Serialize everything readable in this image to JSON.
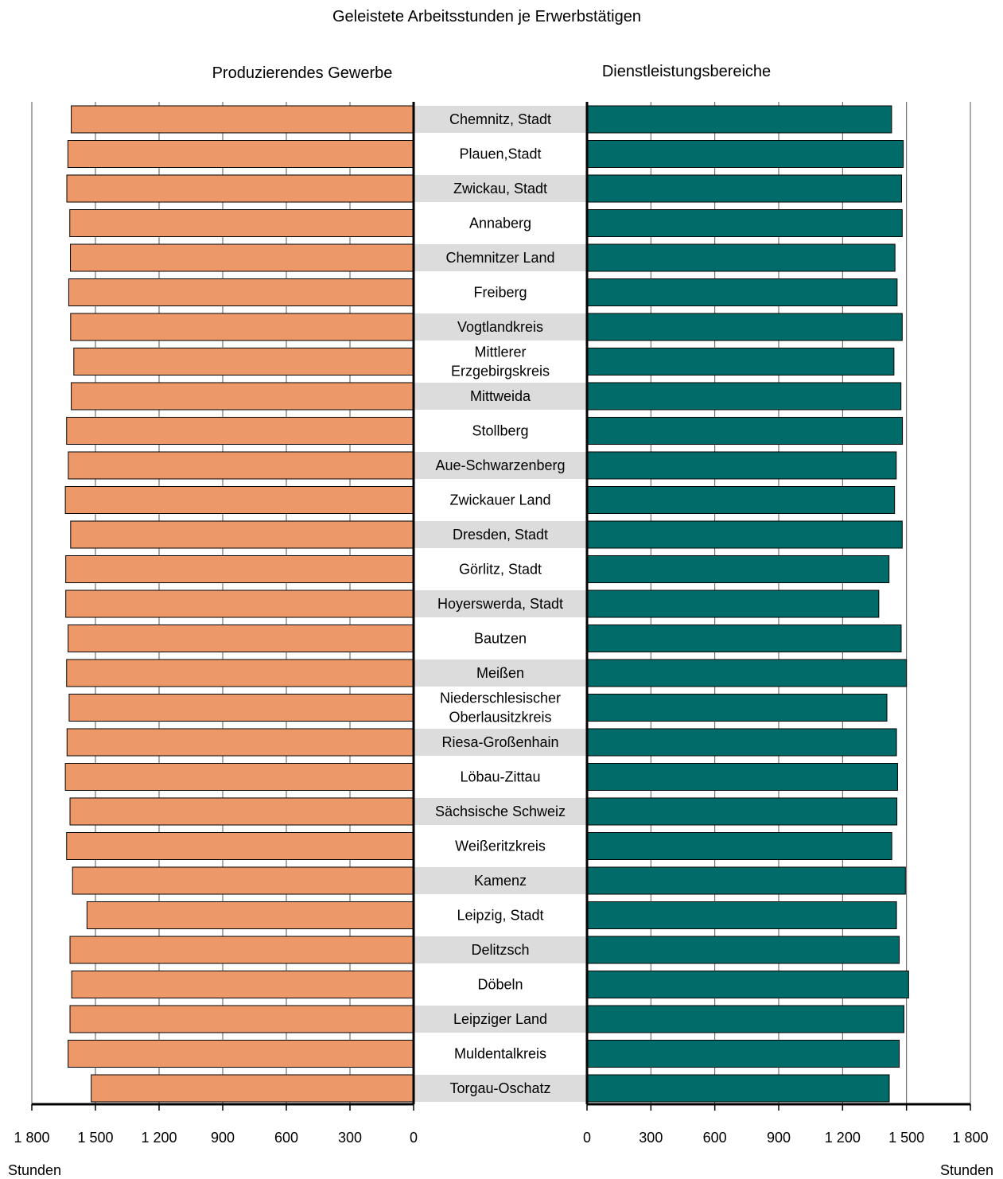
{
  "chart_data": {
    "type": "bar",
    "title": "Geleistete Arbeitsstunden je Erwerbstätigen",
    "left_title": "Produzierendes Gewerbe",
    "right_title": "Dienstleistungsbereiche",
    "unit_left": "Stunden",
    "unit_right": "Stunden",
    "xlim": [
      0,
      1800
    ],
    "left_ticks": [
      "1 800",
      "1 500",
      "1 200",
      "900",
      "600",
      "300",
      "0"
    ],
    "right_ticks": [
      "0",
      "300",
      "600",
      "900",
      "1 200",
      "1 500",
      "1 800"
    ],
    "colors": {
      "left": "#EC9869",
      "right": "#006B68",
      "band": "#DCDCDC"
    },
    "categories": [
      "Chemnitz, Stadt",
      "Plauen,Stadt",
      "Zwickau, Stadt",
      "Annaberg",
      "Chemnitzer Land",
      "Freiberg",
      "Vogtlandkreis",
      "Mittlerer\nErzgebirgskreis",
      "Mittweida",
      "Stollberg",
      "Aue-Schwarzenberg",
      "Zwickauer Land",
      "Dresden, Stadt",
      "Görlitz, Stadt",
      "Hoyerswerda, Stadt",
      "Bautzen",
      "Meißen",
      "Niederschlesischer\nOberlausitzkreis",
      "Riesa-Großenhain",
      "Löbau-Zittau",
      "Sächsische Schweiz",
      "Weißeritzkreis",
      "Kamenz",
      "Leipzig, Stadt",
      "Delitzsch",
      "Döbeln",
      "Leipziger Land",
      "Muldentalkreis",
      "Torgau-Oschatz"
    ],
    "series": [
      {
        "name": "Produzierendes Gewerbe",
        "values": [
          1614,
          1630,
          1635,
          1621,
          1618,
          1626,
          1617,
          1602,
          1614,
          1636,
          1628,
          1642,
          1617,
          1640,
          1640,
          1629,
          1636,
          1624,
          1634,
          1642,
          1620,
          1636,
          1608,
          1540,
          1620,
          1612,
          1620,
          1629,
          1520
        ]
      },
      {
        "name": "Dienstleistungsbereiche",
        "values": [
          1430,
          1485,
          1477,
          1480,
          1446,
          1456,
          1480,
          1441,
          1474,
          1481,
          1452,
          1444,
          1480,
          1418,
          1370,
          1475,
          1500,
          1408,
          1453,
          1458,
          1455,
          1431,
          1495,
          1453,
          1466,
          1510,
          1488,
          1466,
          1419
        ]
      }
    ]
  }
}
